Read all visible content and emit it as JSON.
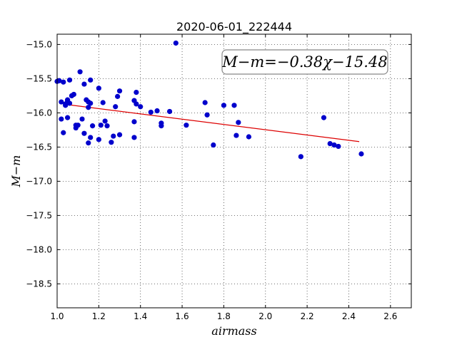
{
  "chart_data": {
    "type": "scatter",
    "title": "2020-06-01_222444",
    "xlabel": "airmass",
    "ylabel": "M−m",
    "xlim": [
      1.0,
      2.7
    ],
    "ylim": [
      -14.85,
      -18.85
    ],
    "y_inverted": true,
    "grid": true,
    "x_ticks": [
      "1.0",
      "1.2",
      "1.4",
      "1.6",
      "1.8",
      "2.0",
      "2.2",
      "2.4",
      "2.6"
    ],
    "y_ticks": [
      "−15.0",
      "−15.5",
      "−16.0",
      "−16.5",
      "−17.0",
      "−17.5",
      "−18.0",
      "−18.5"
    ],
    "annotation": "M−m=−0.38χ−15.48",
    "point_color": "#0000cc",
    "fit_color": "#dd0000",
    "series": [
      {
        "x": [
          1.0,
          1.01,
          1.02,
          1.02,
          1.03,
          1.03,
          1.04,
          1.04,
          1.05,
          1.05,
          1.05,
          1.06,
          1.06,
          1.07,
          1.08,
          1.09,
          1.09,
          1.1,
          1.11,
          1.12,
          1.13,
          1.13,
          1.14,
          1.15,
          1.15,
          1.15,
          1.16,
          1.16,
          1.16,
          1.17,
          1.2,
          1.2,
          1.21,
          1.22,
          1.23,
          1.24,
          1.26,
          1.27,
          1.28,
          1.29,
          1.3,
          1.3,
          1.37,
          1.37,
          1.37,
          1.38,
          1.38,
          1.4,
          1.45,
          1.48,
          1.5,
          1.5,
          1.54,
          1.57,
          1.62,
          1.71,
          1.72,
          1.75,
          1.8,
          1.85,
          1.86,
          1.87,
          1.92,
          2.17,
          2.28,
          2.31,
          2.33,
          2.35,
          2.46
        ],
        "y": [
          -15.54,
          -15.53,
          -15.84,
          -16.09,
          -15.55,
          -16.29,
          -15.87,
          -15.89,
          -15.83,
          -15.81,
          -16.07,
          -15.52,
          -15.86,
          -15.75,
          -15.73,
          -16.18,
          -16.22,
          -16.18,
          -15.4,
          -16.09,
          -15.58,
          -16.3,
          -15.81,
          -15.84,
          -15.92,
          -16.44,
          -15.52,
          -15.86,
          -16.36,
          -16.19,
          -15.64,
          -16.39,
          -16.18,
          -15.85,
          -16.12,
          -16.19,
          -16.43,
          -16.34,
          -15.91,
          -15.76,
          -15.68,
          -16.32,
          -15.82,
          -16.13,
          -16.36,
          -15.7,
          -15.87,
          -15.91,
          -15.99,
          -15.97,
          -16.15,
          -16.19,
          -15.98,
          -14.98,
          -16.18,
          -15.85,
          -16.03,
          -16.47,
          -15.89,
          -15.89,
          -16.33,
          -16.14,
          -16.35,
          -16.64,
          -16.07,
          -16.45,
          -16.47,
          -16.49,
          -16.6
        ]
      },
      {
        "type": "line",
        "x": [
          1.05,
          2.45
        ],
        "y": [
          -15.88,
          -16.42
        ]
      }
    ]
  }
}
